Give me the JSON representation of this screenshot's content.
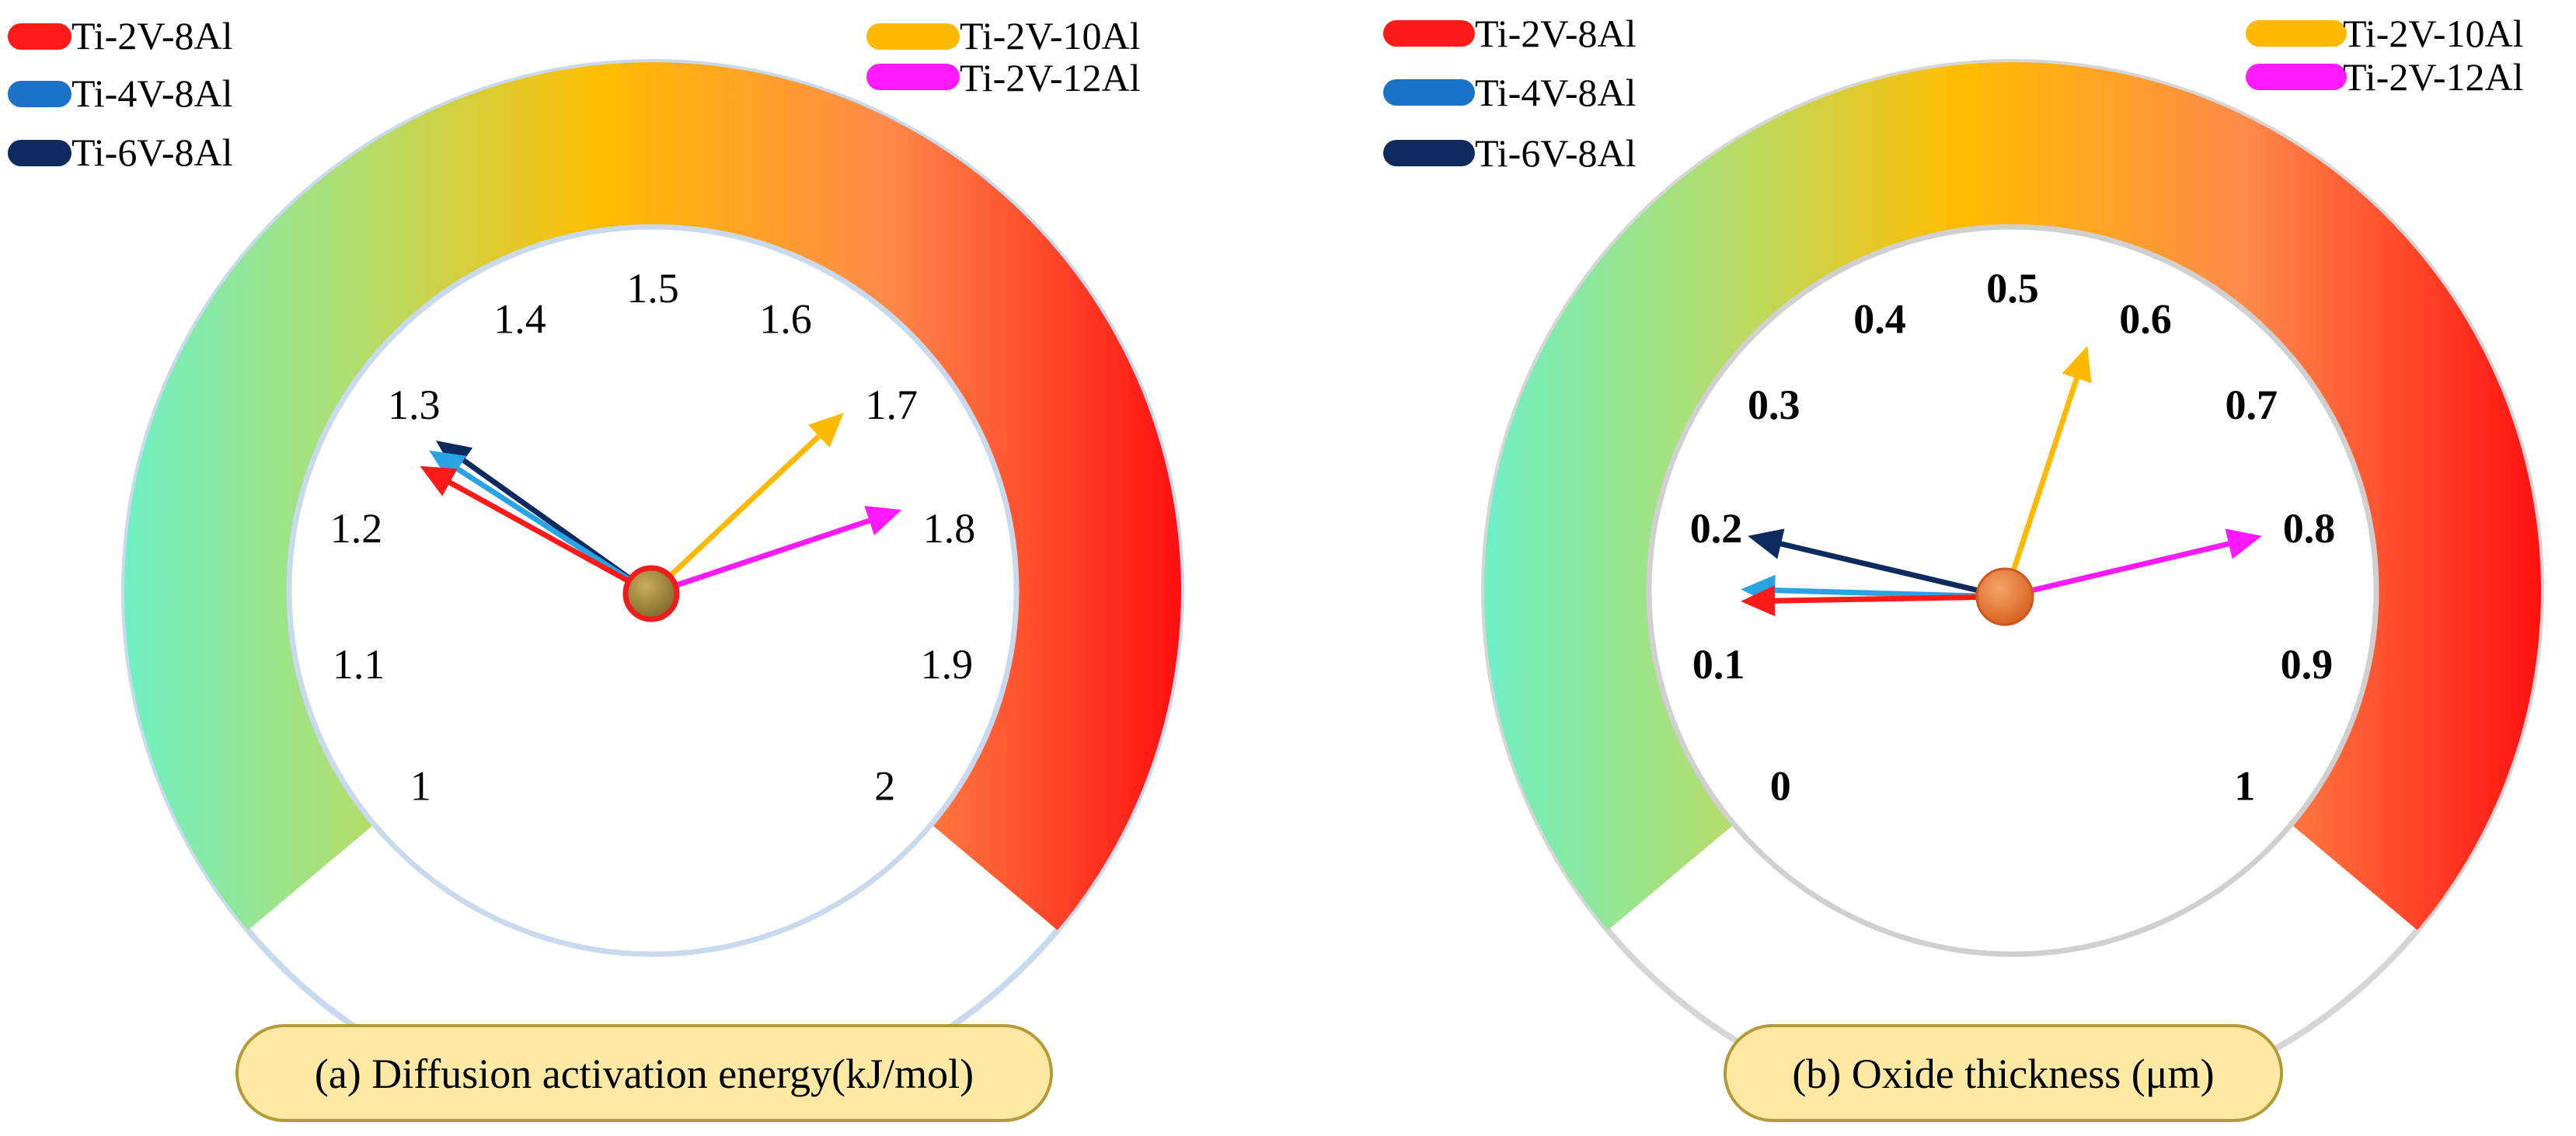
{
  "chart_data": [
    {
      "type": "gauge",
      "panel": "a",
      "caption": "(a) Diffusion activation energy(kJ/mol)",
      "ticks": [
        "1",
        "1.1",
        "1.2",
        "1.3",
        "1.4",
        "1.5",
        "1.6",
        "1.7",
        "1.8",
        "1.9",
        "2"
      ],
      "range": [
        1,
        2
      ],
      "tick_font_weight": "normal",
      "hub_color": "#a08a3c",
      "hub_stroke": "#ee1c1c",
      "series": [
        {
          "name": "Ti-2V-8Al",
          "value": 1.265,
          "color": "#ff1a1a"
        },
        {
          "name": "Ti-4V-8Al",
          "value": 1.28,
          "color": "#29a3e3"
        },
        {
          "name": "Ti-6V-8Al",
          "value": 1.29,
          "color": "#0f2a5e"
        },
        {
          "name": "Ti-2V-10Al",
          "value": 1.68,
          "color": "#ffb900"
        },
        {
          "name": "Ti-2V-12Al",
          "value": 1.775,
          "color": "#ff19ff"
        }
      ]
    },
    {
      "type": "gauge",
      "panel": "b",
      "caption": "(b) Oxide thickness (μm)",
      "ticks": [
        "0",
        "0.1",
        "0.2",
        "0.3",
        "0.4",
        "0.5",
        "0.6",
        "0.7",
        "0.8",
        "0.9",
        "1"
      ],
      "range": [
        0,
        1
      ],
      "tick_font_weight": "bold",
      "hub_color": "#ec7a34",
      "hub_stroke": "#cc5a20",
      "series": [
        {
          "name": "Ti-2V-8Al",
          "value": 0.15,
          "color": "#ff1a1a"
        },
        {
          "name": "Ti-4V-8Al",
          "value": 0.16,
          "color": "#29a3e3"
        },
        {
          "name": "Ti-6V-8Al",
          "value": 0.205,
          "color": "#0f2a5e"
        },
        {
          "name": "Ti-2V-10Al",
          "value": 0.57,
          "color": "#ffb900"
        },
        {
          "name": "Ti-2V-12Al",
          "value": 0.795,
          "color": "#ff19ff"
        }
      ]
    }
  ],
  "legends": [
    {
      "left": [
        "Ti-2V-8Al",
        "Ti-4V-8Al",
        "Ti-6V-8Al"
      ],
      "right": [
        "Ti-2V-10Al",
        "Ti-2V-12Al"
      ]
    },
    {
      "left": [
        "Ti-2V-8Al",
        "Ti-4V-8Al",
        "Ti-6V-8Al"
      ],
      "right": [
        "Ti-2V-10Al",
        "Ti-2V-12Al"
      ]
    }
  ],
  "colors": {
    "Ti-2V-8Al": "#ff1a1a",
    "Ti-4V-8Al": "#1a73c9",
    "Ti-6V-8Al": "#0f2a5e",
    "Ti-2V-10Al": "#ffb900",
    "Ti-2V-12Al": "#ff19ff",
    "caption_fill": "#fde9a4",
    "caption_stroke": "#b59a3a"
  }
}
